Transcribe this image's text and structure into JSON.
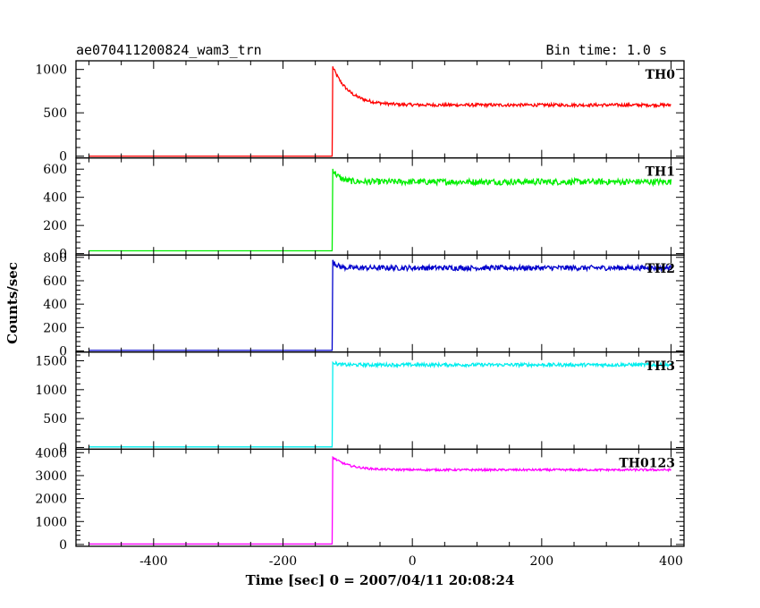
{
  "chart_data": {
    "type": "line",
    "title_left": "ae070411200824_wam3_trn",
    "title_right": "Bin time: 1.0 s",
    "xlabel": "Time [sec] 0 = 2007/04/11 20:08:24",
    "ylabel": "Counts/sec",
    "xlim": [
      -520,
      420
    ],
    "xticks": [
      -400,
      -200,
      0,
      200,
      400
    ],
    "grid": false,
    "trigger_time": -123,
    "panels": [
      {
        "name": "TH0",
        "color": "#ff0000",
        "ylim": [
          -20,
          1100
        ],
        "yticks": [
          0,
          500,
          1000
        ],
        "pre_level": 0,
        "peak": 1030,
        "plateau": 590,
        "decay_sec": 25,
        "noise": 18
      },
      {
        "name": "TH1",
        "color": "#00ee00",
        "ylim": [
          -10,
          680
        ],
        "yticks": [
          0,
          200,
          400,
          600
        ],
        "pre_level": 20,
        "peak": 600,
        "plateau": 510,
        "decay_sec": 10,
        "noise": 22
      },
      {
        "name": "TH2",
        "color": "#0000cc",
        "ylim": [
          -10,
          820
        ],
        "yticks": [
          0,
          200,
          400,
          600,
          800
        ],
        "pre_level": 5,
        "peak": 780,
        "plateau": 710,
        "decay_sec": 6,
        "noise": 22
      },
      {
        "name": "TH3",
        "color": "#00eeee",
        "ylim": [
          -30,
          1650
        ],
        "yticks": [
          0,
          500,
          1000,
          1500
        ],
        "pre_level": 10,
        "peak": 1490,
        "plateau": 1430,
        "decay_sec": 5,
        "noise": 30
      },
      {
        "name": "TH0123",
        "color": "#ff00ff",
        "ylim": [
          -80,
          4150
        ],
        "yticks": [
          0,
          1000,
          2000,
          3000,
          4000
        ],
        "pre_level": 20,
        "peak": 3800,
        "plateau": 3250,
        "decay_sec": 25,
        "noise": 45
      }
    ]
  }
}
